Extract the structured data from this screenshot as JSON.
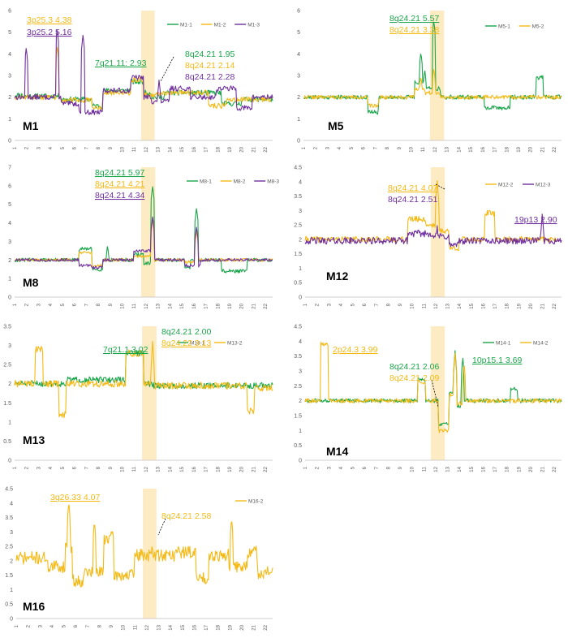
{
  "colors": {
    "green": "#1aa64a",
    "yellow": "#f5b915",
    "purple": "#7030a0",
    "highlight": "#fdebc4",
    "grid": "#d9d9d9",
    "axis": "#bfbfbf"
  },
  "x_chromosomes": [
    "1",
    "2",
    "3",
    "4",
    "5",
    "6",
    "7",
    "8",
    "9",
    "10",
    "11",
    "12",
    "13",
    "14",
    "15",
    "16",
    "17",
    "18",
    "19",
    "20",
    "21",
    "22"
  ],
  "chart_data": [
    {
      "type": "line",
      "sample": "M1",
      "ylim": [
        0,
        6
      ],
      "yticks": [
        0,
        1,
        2,
        3,
        4,
        5,
        6
      ],
      "highlight_region": "8q24",
      "series": [
        {
          "name": "M1-1",
          "color": "green"
        },
        {
          "name": "M1-2",
          "color": "yellow"
        },
        {
          "name": "M1-3",
          "color": "purple"
        }
      ],
      "annotations": [
        {
          "text": "3p25.3 4.38",
          "color": "yellow",
          "underline": true
        },
        {
          "text": "3p25.2 5.16",
          "color": "purple",
          "underline": true
        },
        {
          "text": "7q21.11: 2.93",
          "color": "green",
          "underline": true
        },
        {
          "text": "8q24.21 1.95",
          "color": "green",
          "underline": false
        },
        {
          "text": "8q24.21 2.14",
          "color": "yellow",
          "underline": false
        },
        {
          "text": "8q24.21 2.28",
          "color": "purple",
          "underline": false
        }
      ]
    },
    {
      "type": "line",
      "sample": "M5",
      "ylim": [
        0,
        6
      ],
      "yticks": [
        0,
        1,
        2,
        3,
        4,
        5,
        6
      ],
      "highlight_region": "8q24",
      "series": [
        {
          "name": "M5-1",
          "color": "green"
        },
        {
          "name": "M5-2",
          "color": "yellow"
        }
      ],
      "annotations": [
        {
          "text": "8q24.21 5.57",
          "color": "green",
          "underline": true
        },
        {
          "text": "8q24.21 3.38",
          "color": "yellow",
          "underline": true
        }
      ]
    },
    {
      "type": "line",
      "sample": "M8",
      "ylim": [
        0,
        7
      ],
      "yticks": [
        0,
        1,
        2,
        3,
        4,
        5,
        6,
        7
      ],
      "highlight_region": "8q24",
      "series": [
        {
          "name": "M8-1",
          "color": "green"
        },
        {
          "name": "M8-2",
          "color": "yellow"
        },
        {
          "name": "M8-3",
          "color": "purple"
        }
      ],
      "annotations": [
        {
          "text": "8q24.21 5.97",
          "color": "green",
          "underline": true
        },
        {
          "text": "8q24.21 4.21",
          "color": "yellow",
          "underline": true
        },
        {
          "text": "8q24.21 4.34",
          "color": "purple",
          "underline": true
        }
      ]
    },
    {
      "type": "line",
      "sample": "M12",
      "ylim": [
        0,
        4.5
      ],
      "yticks": [
        0,
        0.5,
        1,
        1.5,
        2,
        2.5,
        3,
        3.5,
        4,
        4.5
      ],
      "highlight_region": "8q24",
      "series": [
        {
          "name": "M12-2",
          "color": "yellow"
        },
        {
          "name": "M12-3",
          "color": "purple"
        }
      ],
      "annotations": [
        {
          "text": "8q24.21 4.07",
          "color": "yellow",
          "underline": true
        },
        {
          "text": "8q24.21 2.51",
          "color": "purple",
          "underline": false
        },
        {
          "text": "19p13 2.90",
          "color": "purple",
          "underline": true
        }
      ]
    },
    {
      "type": "line",
      "sample": "M13",
      "ylim": [
        0,
        3.5
      ],
      "yticks": [
        0,
        0.5,
        1,
        1.5,
        2,
        2.5,
        3,
        3.5
      ],
      "highlight_region": "8q24",
      "series": [
        {
          "name": "M13-1",
          "color": "green"
        },
        {
          "name": "M13-2",
          "color": "yellow"
        }
      ],
      "annotations": [
        {
          "text": "7q21.1 3.02",
          "color": "green",
          "underline": true
        },
        {
          "text": "8q24.21 2.00",
          "color": "green",
          "underline": false
        },
        {
          "text": "8q24.22 3.13",
          "color": "yellow",
          "underline": true
        }
      ]
    },
    {
      "type": "line",
      "sample": "M14",
      "ylim": [
        0,
        4.5
      ],
      "yticks": [
        0,
        0.5,
        1,
        1.5,
        2,
        2.5,
        3,
        3.5,
        4,
        4.5
      ],
      "highlight_region": "8q24",
      "series": [
        {
          "name": "M14-1",
          "color": "green"
        },
        {
          "name": "M14-2",
          "color": "yellow"
        }
      ],
      "annotations": [
        {
          "text": "2p24.3 3.99",
          "color": "yellow",
          "underline": true
        },
        {
          "text": "10p15.1 3.69",
          "color": "green",
          "underline": true
        },
        {
          "text": "8q24.21 2.06",
          "color": "green",
          "underline": false
        },
        {
          "text": "8q24.21 2.09",
          "color": "yellow",
          "underline": false
        }
      ]
    },
    {
      "type": "line",
      "sample": "M16",
      "ylim": [
        0,
        4.5
      ],
      "yticks": [
        0,
        0.5,
        1,
        1.5,
        2,
        2.5,
        3,
        3.5,
        4,
        4.5
      ],
      "highlight_region": "8q24",
      "series": [
        {
          "name": "M16-2",
          "color": "yellow"
        }
      ],
      "annotations": [
        {
          "text": "3q26.33 4.07",
          "color": "yellow",
          "underline": true
        },
        {
          "text": "8q24.21 2.58",
          "color": "yellow",
          "underline": false
        }
      ]
    }
  ]
}
